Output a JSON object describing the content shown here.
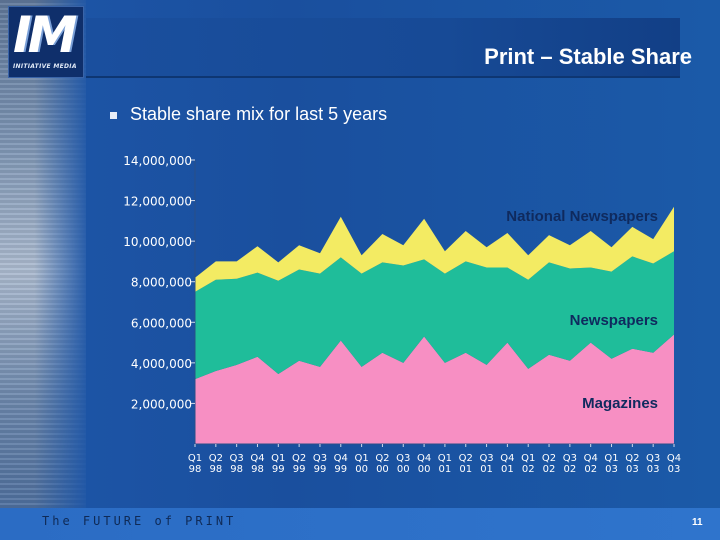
{
  "logo": {
    "mark": "IM",
    "subtitle": "INITIATIVE MEDIA"
  },
  "title": "Print – Stable Share",
  "bullet": "Stable share mix for last 5 years",
  "footer": {
    "text": "The FUTURE of PRINT",
    "page_number": "11"
  },
  "colors": {
    "magazines": "#f78fc3",
    "newspapers": "#1fbd9a",
    "national_newspapers": "#f3eb63"
  },
  "chart_data": {
    "type": "area",
    "stacked": true,
    "categories": [
      "Q1 98",
      "Q2 98",
      "Q3 98",
      "Q4 98",
      "Q1 99",
      "Q2 99",
      "Q3 99",
      "Q4 99",
      "Q1 00",
      "Q2 00",
      "Q3 00",
      "Q4 00",
      "Q1 01",
      "Q2 01",
      "Q3 01",
      "Q4 01",
      "Q1 02",
      "Q2 02",
      "Q3 02",
      "Q4 02",
      "Q1 03",
      "Q2 03",
      "Q3 03",
      "Q4 03"
    ],
    "tick_labels": [
      [
        "Q1",
        "98"
      ],
      [
        "Q2",
        "98"
      ],
      [
        "Q3",
        "98"
      ],
      [
        "Q4",
        "98"
      ],
      [
        "Q1",
        "99"
      ],
      [
        "Q2",
        "99"
      ],
      [
        "Q3",
        "99"
      ],
      [
        "Q4",
        "99"
      ],
      [
        "Q1",
        "00"
      ],
      [
        "Q2",
        "00"
      ],
      [
        "Q3",
        "00"
      ],
      [
        "Q4",
        "00"
      ],
      [
        "Q1",
        "01"
      ],
      [
        "Q2",
        "01"
      ],
      [
        "Q3",
        "01"
      ],
      [
        "Q4",
        "01"
      ],
      [
        "Q1",
        "02"
      ],
      [
        "Q2",
        "02"
      ],
      [
        "Q3",
        "02"
      ],
      [
        "Q4",
        "02"
      ],
      [
        "Q1",
        "03"
      ],
      [
        "Q2",
        "03"
      ],
      [
        "Q3",
        "03"
      ],
      [
        "Q4",
        "03"
      ]
    ],
    "y_tick_labels": [
      "14,000,000",
      "12,000,000",
      "10,000,000",
      "8,000,000",
      "6,000,000",
      "4,000,000",
      "2,000,000"
    ],
    "y_tick_values": [
      14000000,
      12000000,
      10000000,
      8000000,
      6000000,
      4000000,
      2000000
    ],
    "ylim": [
      0,
      14000000
    ],
    "grid": false,
    "series": [
      {
        "name": "Magazines",
        "values": [
          3200000,
          3600000,
          3900000,
          4300000,
          3450000,
          4100000,
          3800000,
          5100000,
          3800000,
          4500000,
          4000000,
          5300000,
          4000000,
          4500000,
          3900000,
          5000000,
          3700000,
          4400000,
          4100000,
          5000000,
          4200000,
          4700000,
          4500000,
          5400000
        ]
      },
      {
        "name": "Newspapers",
        "values": [
          4300000,
          4500000,
          4250000,
          4150000,
          4600000,
          4500000,
          4600000,
          4100000,
          4600000,
          4450000,
          4800000,
          3800000,
          4400000,
          4500000,
          4800000,
          3700000,
          4400000,
          4550000,
          4550000,
          3700000,
          4300000,
          4550000,
          4400000,
          4100000
        ]
      },
      {
        "name": "National Newspapers",
        "values": [
          700000,
          900000,
          850000,
          1300000,
          900000,
          1200000,
          1000000,
          2000000,
          900000,
          1400000,
          1000000,
          2000000,
          1100000,
          1500000,
          1000000,
          1700000,
          1200000,
          1350000,
          1150000,
          1800000,
          1200000,
          1450000,
          1200000,
          2200000
        ]
      }
    ]
  }
}
